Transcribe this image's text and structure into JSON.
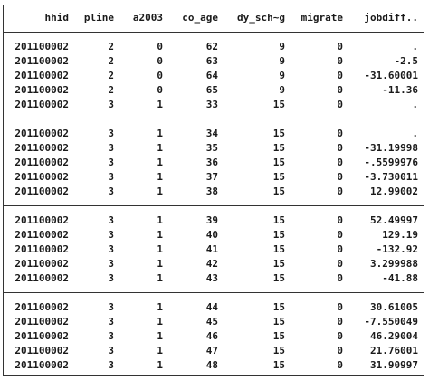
{
  "table": {
    "columns": [
      "hhid",
      "pline",
      "a2003",
      "co_age",
      "dy_sch~g",
      "migrate",
      "jobdiff.."
    ],
    "groups": [
      [
        [
          "201100002",
          "2",
          "0",
          "62",
          "9",
          "0",
          "."
        ],
        [
          "201100002",
          "2",
          "0",
          "63",
          "9",
          "0",
          "-2.5"
        ],
        [
          "201100002",
          "2",
          "0",
          "64",
          "9",
          "0",
          "-31.60001"
        ],
        [
          "201100002",
          "2",
          "0",
          "65",
          "9",
          "0",
          "-11.36"
        ],
        [
          "201100002",
          "3",
          "1",
          "33",
          "15",
          "0",
          "."
        ]
      ],
      [
        [
          "201100002",
          "3",
          "1",
          "34",
          "15",
          "0",
          "."
        ],
        [
          "201100002",
          "3",
          "1",
          "35",
          "15",
          "0",
          "-31.19998"
        ],
        [
          "201100002",
          "3",
          "1",
          "36",
          "15",
          "0",
          "-.5599976"
        ],
        [
          "201100002",
          "3",
          "1",
          "37",
          "15",
          "0",
          "-3.730011"
        ],
        [
          "201100002",
          "3",
          "1",
          "38",
          "15",
          "0",
          "12.99002"
        ]
      ],
      [
        [
          "201100002",
          "3",
          "1",
          "39",
          "15",
          "0",
          "52.49997"
        ],
        [
          "201100002",
          "3",
          "1",
          "40",
          "15",
          "0",
          "129.19"
        ],
        [
          "201100002",
          "3",
          "1",
          "41",
          "15",
          "0",
          "-132.92"
        ],
        [
          "201100002",
          "3",
          "1",
          "42",
          "15",
          "0",
          "3.299988"
        ],
        [
          "201100002",
          "3",
          "1",
          "43",
          "15",
          "0",
          "-41.88"
        ]
      ],
      [
        [
          "201100002",
          "3",
          "1",
          "44",
          "15",
          "0",
          "30.61005"
        ],
        [
          "201100002",
          "3",
          "1",
          "45",
          "15",
          "0",
          "-7.550049"
        ],
        [
          "201100002",
          "3",
          "1",
          "46",
          "15",
          "0",
          "46.29004"
        ],
        [
          "201100002",
          "3",
          "1",
          "47",
          "15",
          "0",
          "21.76001"
        ],
        [
          "201100002",
          "3",
          "1",
          "48",
          "15",
          "0",
          "31.90997"
        ]
      ]
    ]
  }
}
